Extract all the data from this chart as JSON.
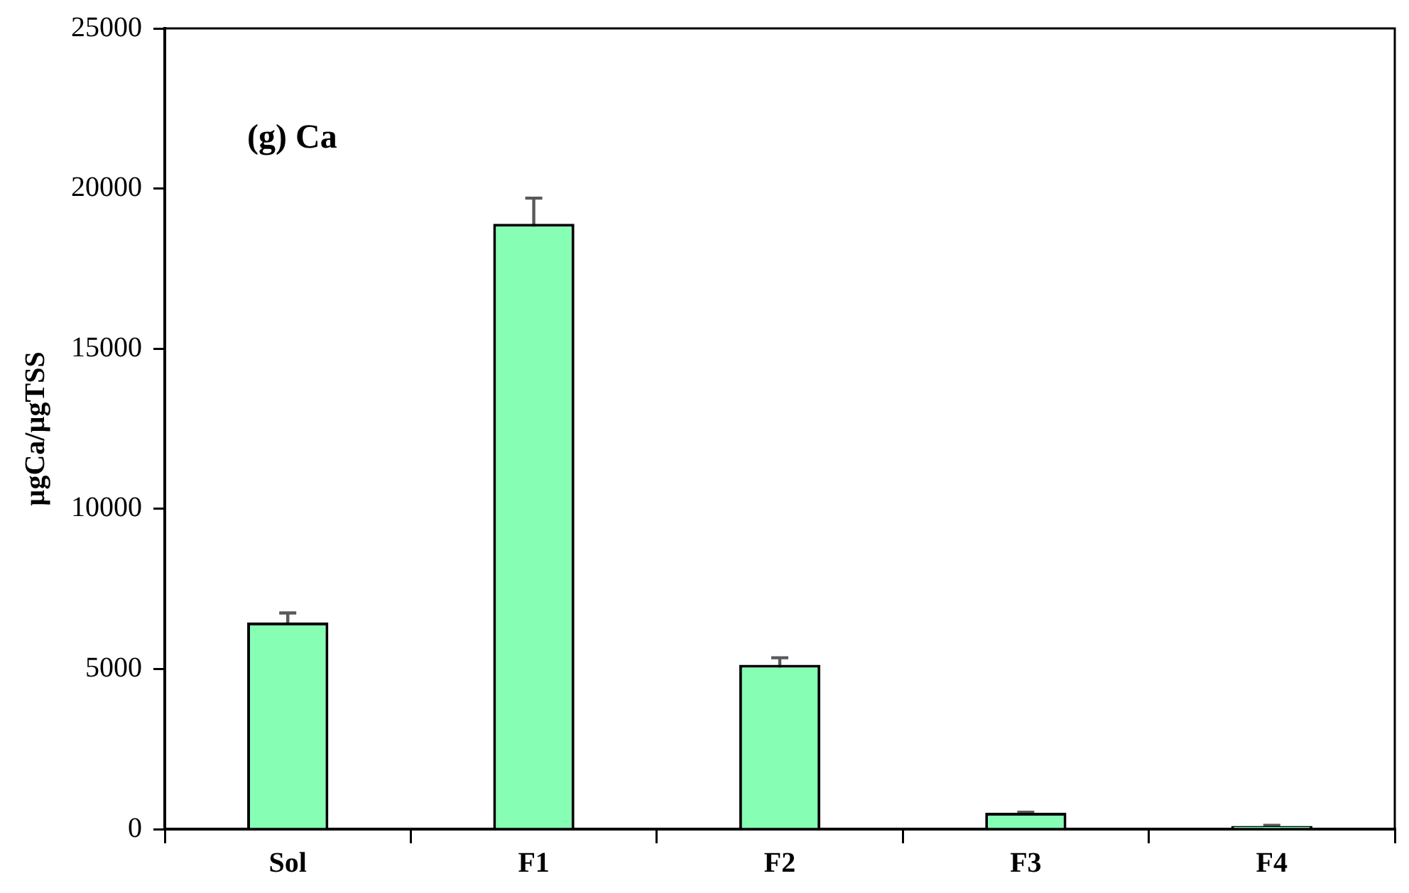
{
  "chart_data": {
    "type": "bar",
    "ylabel": "µgCa/µgTSS",
    "categories": [
      "Sol",
      "F1",
      "F2",
      "F3",
      "F4"
    ],
    "values": [
      6450,
      18900,
      5130,
      510,
      100
    ],
    "errors": [
      300,
      800,
      220,
      20,
      20
    ],
    "color": "#86ffb5",
    "ylim": [
      0,
      25000
    ],
    "yticks": [
      0,
      5000,
      10000,
      15000,
      20000,
      25000
    ],
    "grid": false,
    "legend": false,
    "annotations": [
      "(g) Ca"
    ]
  }
}
